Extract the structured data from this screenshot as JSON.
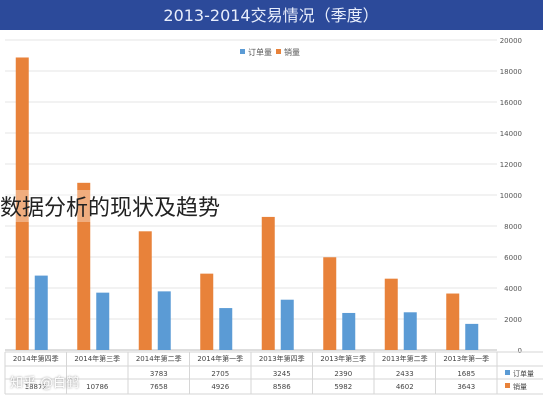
{
  "chart_data": {
    "type": "bar",
    "title": "2013-2014交易情况（季度）",
    "categories": [
      "2014年第四季",
      "2014年第三季",
      "2014年第二季",
      "2014年第一季",
      "2013年第四季",
      "2013年第三季",
      "2013年第二季",
      "2013年第一季"
    ],
    "series": [
      {
        "name": "销量",
        "color": "#e8823a",
        "values": [
          18872,
          10786,
          7658,
          4926,
          8586,
          5982,
          4602,
          3643
        ]
      },
      {
        "name": "订单量",
        "color": "#5b9bd5",
        "values": [
          4800,
          3700,
          3783,
          2705,
          3245,
          2390,
          2433,
          1685
        ]
      }
    ],
    "table_rows": [
      {
        "label": "订单量",
        "color": "#5b9bd5",
        "values": [
          "",
          "",
          "3783",
          "2705",
          "3245",
          "2390",
          "2433",
          "1685"
        ]
      },
      {
        "label": "销量",
        "color": "#e8823a",
        "values": [
          "18872",
          "10786",
          "7658",
          "4926",
          "8586",
          "5982",
          "4602",
          "3643"
        ]
      }
    ],
    "y_ticks": [
      "20000",
      "18000",
      "16000",
      "14000",
      "12000",
      "10000",
      "8000",
      "6000",
      "4000",
      "2000",
      "0"
    ],
    "ylim": [
      0,
      20000
    ],
    "y_axis_side": "right",
    "legend_position": "top-center",
    "gridlines": true
  },
  "overlay_caption": "数据分析的现状及趋势",
  "watermark": "知乎 @白鹤"
}
